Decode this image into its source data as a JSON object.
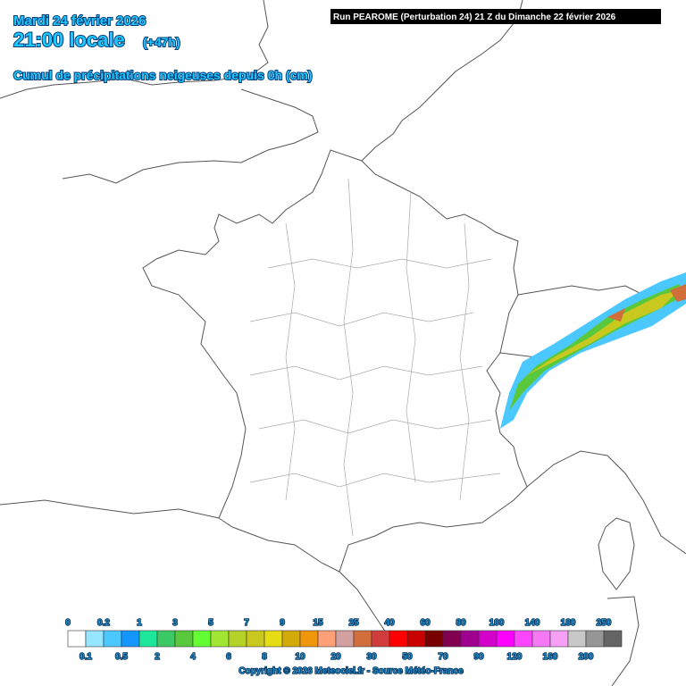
{
  "header": {
    "date": "Mardi 24 février 2026",
    "time": "21:00 locale",
    "offset": "(+47h)",
    "subtitle": "Cumul de précipitations neigeuses depuis 0h (cm)",
    "run": "Run PEAROME (Perturbation 24) 21 Z du Dimanche 22 février 2026"
  },
  "legend": {
    "labels": [
      "0",
      "0.1",
      "0.2",
      "0.5",
      "1",
      "2",
      "3",
      "4",
      "5",
      "6",
      "7",
      "8",
      "9",
      "10",
      "15",
      "20",
      "25",
      "30",
      "40",
      "50",
      "60",
      "70",
      "80",
      "90",
      "100",
      "120",
      "140",
      "160",
      "180",
      "200",
      "250"
    ],
    "colors": [
      "#ffffff",
      "#96e6ff",
      "#4bc8ff",
      "#1496ff",
      "#1ee69b",
      "#3cc864",
      "#5ac83c",
      "#64ff32",
      "#a0e632",
      "#b4d228",
      "#c8c81e",
      "#e6dc14",
      "#d2aa0a",
      "#f0960a",
      "#ffa078",
      "#d2a0a0",
      "#d26e3c",
      "#d23c3c",
      "#ff0000",
      "#c80000",
      "#780000",
      "#820050",
      "#a00090",
      "#d200c8",
      "#ff00ff",
      "#ff46ff",
      "#f578f5",
      "#f5a0f5",
      "#c8c8c8",
      "#969696",
      "#646464"
    ]
  },
  "footer": {
    "copyright": "Copyright © 2026 Meteociel.fr - Source Météo-France"
  }
}
